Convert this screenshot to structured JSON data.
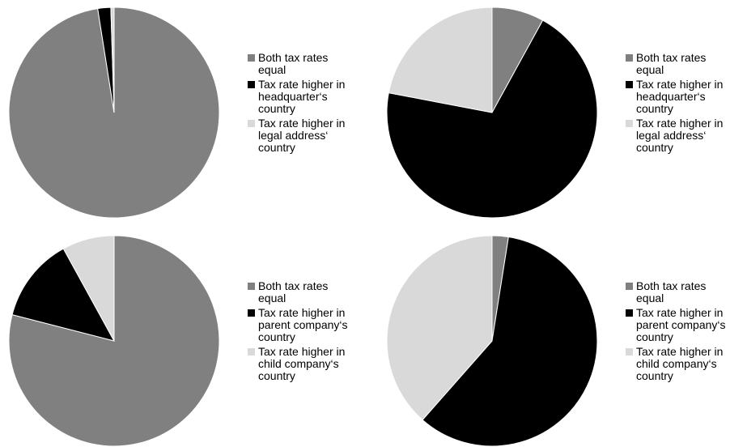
{
  "colors": {
    "equal": "#808080",
    "higher_first": "#000000",
    "higher_second": "#d9d9d9"
  },
  "chart_data": [
    {
      "type": "pie",
      "title": "",
      "labels": [
        "Both tax rates\nequal",
        "Tax rate higher in\nheadquarter‘s\ncountry",
        "Tax rate higher in\nlegal address‘\ncountry"
      ],
      "values": [
        97.5,
        2.0,
        0.5
      ],
      "colors": [
        "#808080",
        "#000000",
        "#d9d9d9"
      ],
      "legend": "right"
    },
    {
      "type": "pie",
      "title": "",
      "labels": [
        "Both tax rates\nequal",
        "Tax rate higher in\nheadquarter‘s\ncountry",
        "Tax rate higher in\nlegal address‘\ncountry"
      ],
      "values": [
        8,
        70,
        22
      ],
      "colors": [
        "#808080",
        "#000000",
        "#d9d9d9"
      ],
      "legend": "right"
    },
    {
      "type": "pie",
      "title": "",
      "labels": [
        "Both tax rates\nequal",
        "Tax rate higher in\nparent company‘s\ncountry",
        "Tax rate higher in\nchild company‘s\ncountry"
      ],
      "values": [
        79,
        13,
        8
      ],
      "colors": [
        "#808080",
        "#000000",
        "#d9d9d9"
      ],
      "legend": "right"
    },
    {
      "type": "pie",
      "title": "",
      "labels": [
        "Both tax rates\nequal",
        "Tax rate higher in\nparent company‘s\ncountry",
        "Tax rate higher in\nchild company‘s\ncountry"
      ],
      "values": [
        2.5,
        59,
        38.5
      ],
      "colors": [
        "#808080",
        "#000000",
        "#d9d9d9"
      ],
      "legend": "right"
    }
  ]
}
